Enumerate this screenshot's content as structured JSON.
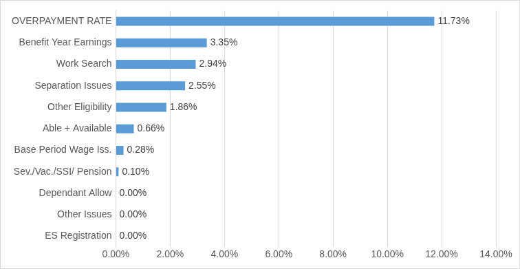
{
  "chart_data": {
    "type": "bar",
    "orientation": "horizontal",
    "categories": [
      "OVERPAYMENT RATE",
      "Benefit Year Earnings",
      "Work Search",
      "Separation Issues",
      "Other Eligibility",
      "Able + Available",
      "Base Period Wage Iss.",
      "Sev./Vac./SSI/ Pension",
      "Dependant Allow",
      "Other Issues",
      "ES Registration"
    ],
    "values": [
      11.73,
      3.35,
      2.94,
      2.55,
      1.86,
      0.66,
      0.28,
      0.1,
      0.0,
      0.0,
      0.0
    ],
    "value_labels": [
      "11.73%",
      "3.35%",
      "2.94%",
      "2.55%",
      "1.86%",
      "0.66%",
      "0.28%",
      "0.10%",
      "0.00%",
      "0.00%",
      "0.00%"
    ],
    "color": "#5b9bd5",
    "xlim": [
      0,
      14
    ],
    "xticks": [
      {
        "value": 0,
        "label": "0.00%"
      },
      {
        "value": 2,
        "label": "2.00%"
      },
      {
        "value": 4,
        "label": "4.00%"
      },
      {
        "value": 6,
        "label": "6.00%"
      },
      {
        "value": 8,
        "label": "8.00%"
      },
      {
        "value": 10,
        "label": "10.00%"
      },
      {
        "value": 12,
        "label": "12.00%"
      },
      {
        "value": 14,
        "label": "14.00%"
      }
    ],
    "grid": true,
    "data_labels": true
  }
}
